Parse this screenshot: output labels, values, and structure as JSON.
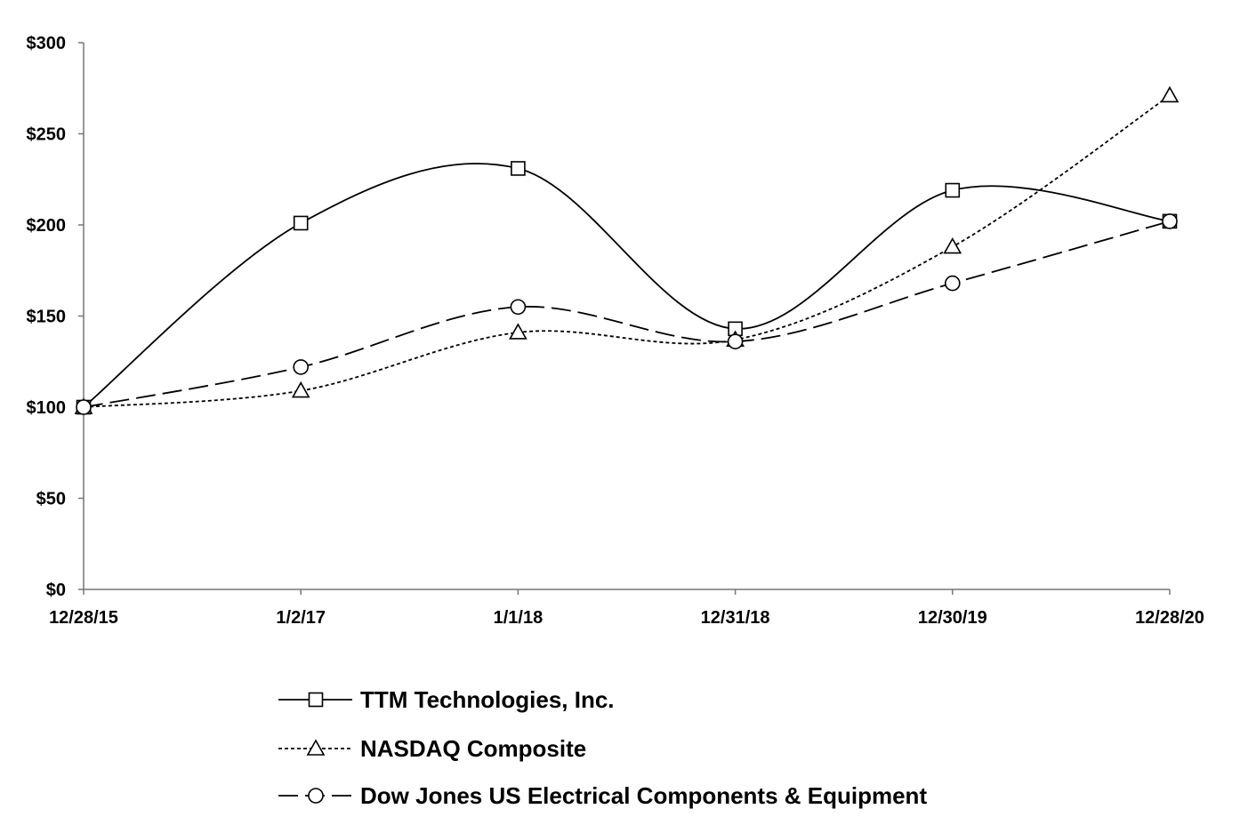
{
  "chart_data": {
    "type": "line",
    "title": "",
    "xlabel": "",
    "ylabel": "",
    "categories": [
      "12/28/15",
      "1/2/17",
      "1/1/18",
      "12/31/18",
      "12/30/19",
      "12/28/20"
    ],
    "ylim": [
      0,
      300
    ],
    "yticks": [
      0,
      50,
      100,
      150,
      200,
      250,
      300
    ],
    "ytick_labels": [
      "$0",
      "$50",
      "$100",
      "$150",
      "$200",
      "$250",
      "$300"
    ],
    "grid": false,
    "smooth": true,
    "legend_placement": "bottom",
    "series": [
      {
        "name": "TTM Technologies, Inc.",
        "values": [
          100,
          201,
          231,
          143,
          219,
          202
        ],
        "marker": "square",
        "line_style": "solid",
        "color": "#000000"
      },
      {
        "name": "NASDAQ Composite",
        "values": [
          100,
          109,
          141,
          137,
          188,
          271
        ],
        "marker": "triangle",
        "line_style": "dotted",
        "color": "#000000"
      },
      {
        "name": "Dow Jones US Electrical Components & Equipment",
        "values": [
          100,
          122,
          155,
          136,
          168,
          202
        ],
        "marker": "circle",
        "line_style": "dashed",
        "color": "#000000"
      }
    ]
  }
}
